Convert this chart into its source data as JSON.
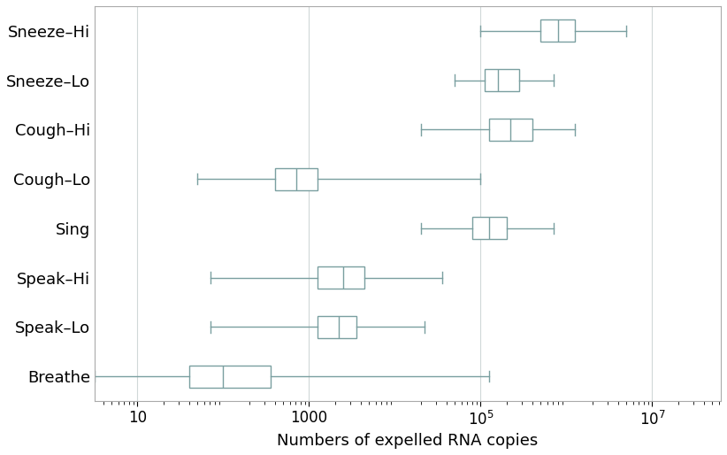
{
  "labels": [
    "Sneeze–Hi",
    "Sneeze–Lo",
    "Cough–Hi",
    "Cough–Lo",
    "Sing",
    "Speak–Hi",
    "Speak–Lo",
    "Breathe"
  ],
  "boxes": [
    {
      "whislo": 5.0,
      "q1": 5.7,
      "med": 5.9,
      "q3": 6.1,
      "whishi": 6.7
    },
    {
      "whislo": 4.7,
      "q1": 5.05,
      "med": 5.2,
      "q3": 5.45,
      "whishi": 5.85
    },
    {
      "whislo": 4.3,
      "q1": 5.1,
      "med": 5.35,
      "q3": 5.6,
      "whishi": 6.1
    },
    {
      "whislo": 1.7,
      "q1": 2.6,
      "med": 2.85,
      "q3": 3.1,
      "whishi": 5.0
    },
    {
      "whislo": 4.3,
      "q1": 4.9,
      "med": 5.1,
      "q3": 5.3,
      "whishi": 5.85
    },
    {
      "whislo": 1.85,
      "q1": 3.1,
      "med": 3.4,
      "q3": 3.65,
      "whishi": 4.55
    },
    {
      "whislo": 1.85,
      "q1": 3.1,
      "med": 3.35,
      "q3": 3.55,
      "whishi": 4.35
    },
    {
      "whislo": 0.5,
      "q1": 1.6,
      "med": 2.0,
      "q3": 2.55,
      "whishi": 5.1
    }
  ],
  "xlabel": "Numbers of expelled RNA copies",
  "xlim_log": [
    0.5,
    7.8
  ],
  "box_color": "#7a9fa0",
  "box_facecolor": "white",
  "median_color": "#7a9fa0",
  "whisker_color": "#7a9fa0",
  "cap_color": "#7a9fa0",
  "grid_color": "#d0d8d8",
  "label_fontsize": 13,
  "tick_fontsize": 12
}
